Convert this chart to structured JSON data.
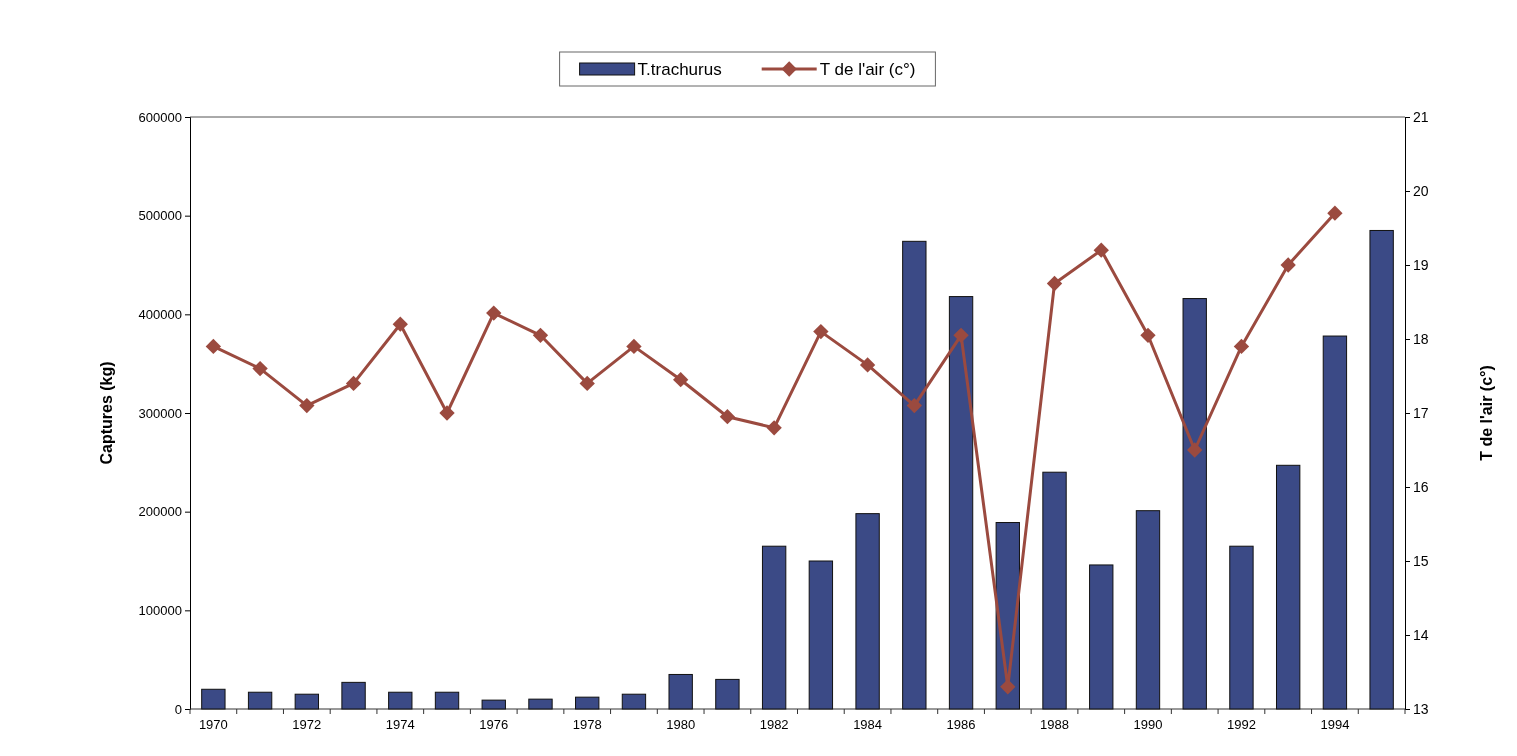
{
  "chart_data": {
    "type": "bar",
    "ylabel": "Captures (kg)",
    "y2label": "T de l'air (c°)",
    "categories": [
      "1970",
      null,
      "1972",
      null,
      "1974",
      null,
      "1976",
      null,
      "1978",
      null,
      "1980",
      null,
      "1982",
      null,
      "1984",
      null,
      "1986",
      null,
      "1988",
      null,
      "1990",
      null,
      "1992",
      null,
      "1994",
      null
    ],
    "series": [
      {
        "name": "T.trachurus",
        "color": "#3b4a86",
        "values": [
          20000,
          17000,
          15000,
          27000,
          17000,
          17000,
          9000,
          10000,
          12000,
          15000,
          35000,
          30000,
          165000,
          150000,
          198000,
          474000,
          418000,
          189000,
          240000,
          146000,
          201000,
          416000,
          165000,
          247000,
          378000,
          485000
        ]
      },
      {
        "name": "T de l'air (c°)",
        "type": "line",
        "axis": "y2",
        "color": "#9b4a3f",
        "marker": "diamond",
        "values": [
          17.9,
          17.6,
          17.1,
          17.4,
          18.2,
          17.0,
          18.35,
          18.05,
          17.4,
          17.9,
          17.45,
          16.95,
          16.8,
          18.1,
          17.65,
          17.1,
          18.05,
          13.3,
          18.75,
          19.2,
          18.05,
          16.5,
          17.9,
          19.0,
          19.7,
          null
        ]
      }
    ],
    "ylim": [
      0,
      600000
    ],
    "yticks": [
      0,
      100000,
      200000,
      300000,
      400000,
      500000,
      600000
    ],
    "y2lim": [
      13,
      21
    ],
    "y2ticks": [
      13,
      14,
      15,
      16,
      17,
      18,
      19,
      20,
      21
    ],
    "legend": "top",
    "grid": false
  }
}
